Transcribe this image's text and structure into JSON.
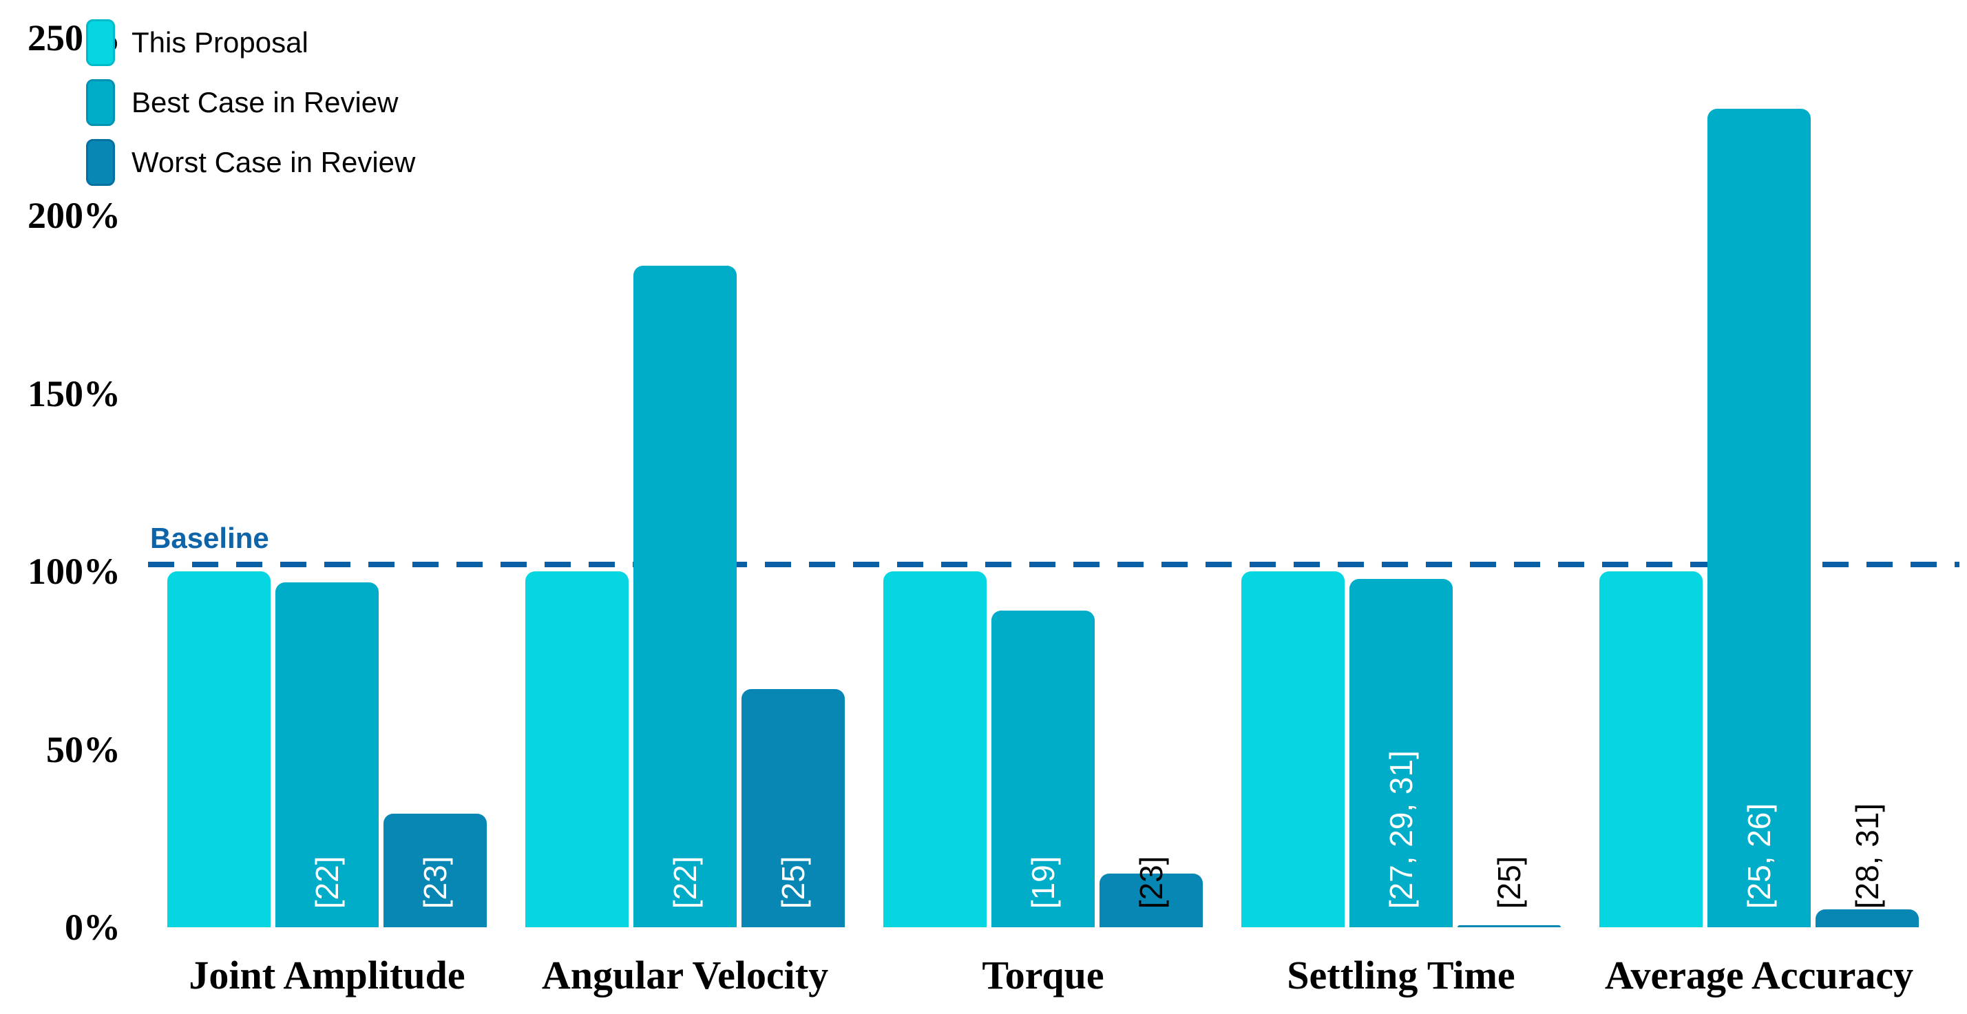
{
  "chart_data": {
    "type": "bar",
    "title": "",
    "xlabel": "",
    "ylabel": "",
    "categories": [
      "Joint Amplitude",
      "Angular Velocity",
      "Torque",
      "Settling Time",
      "Average Accuracy"
    ],
    "series": [
      {
        "name": "This Proposal",
        "color": "#06d6e2",
        "border_color": "#00b9c9",
        "values": [
          100,
          100,
          100,
          100,
          100
        ],
        "citations": [
          "",
          "",
          "",
          "",
          ""
        ]
      },
      {
        "name": "Best Case in Review",
        "color": "#00adc9",
        "border_color": "#0092b0",
        "values": [
          97,
          186,
          89,
          98,
          230
        ],
        "citations": [
          "[22]",
          "[22]",
          "[19]",
          "[27, 29, 31]",
          "[25, 26]"
        ]
      },
      {
        "name": "Worst Case in Review",
        "color": "#0887b4",
        "border_color": "#0670a0",
        "values": [
          32,
          67,
          15,
          0.5,
          5
        ],
        "citations": [
          "[23]",
          "[25]",
          "[23]",
          "[25]",
          "[28, 31]"
        ]
      }
    ],
    "baseline": {
      "label": "Baseline",
      "value_pct": 102,
      "color": "#0b5fa5"
    },
    "y_ticks": [
      {
        "label": "0%",
        "value": 0
      },
      {
        "label": "50%",
        "value": 50
      },
      {
        "label": "100%",
        "value": 100
      },
      {
        "label": "150%",
        "value": 150
      },
      {
        "label": "200%",
        "value": 200
      },
      {
        "label": "250%",
        "value": 250
      }
    ],
    "ylim": [
      0,
      250
    ],
    "grid": false,
    "legend_position": "top-left",
    "citation_text_colors": {
      "inside_bar": "#ffffff",
      "outside_bar": "#000000"
    }
  }
}
